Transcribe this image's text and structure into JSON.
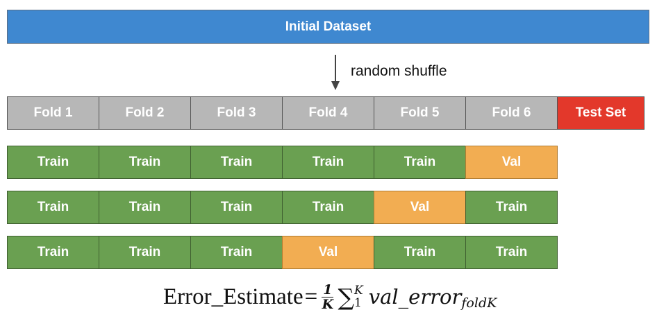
{
  "initial_dataset": {
    "label": "Initial Dataset",
    "color": "#3f88d0"
  },
  "shuffle": {
    "label": "random shuffle"
  },
  "folds": {
    "labels": [
      "Fold 1",
      "Fold 2",
      "Fold 3",
      "Fold 4",
      "Fold 5",
      "Fold 6"
    ],
    "test_label": "Test Set",
    "fold_color": "#b7b7b7",
    "test_color": "#e3382b"
  },
  "iterations": [
    [
      "Train",
      "Train",
      "Train",
      "Train",
      "Train",
      "Val"
    ],
    [
      "Train",
      "Train",
      "Train",
      "Train",
      "Val",
      "Train"
    ],
    [
      "Train",
      "Train",
      "Train",
      "Val",
      "Train",
      "Train"
    ]
  ],
  "colors": {
    "train": "#6aa051",
    "val": "#f2ad52"
  },
  "formula": {
    "lhs": "Error_Estimate",
    "equals": "=",
    "frac_num": "1",
    "frac_den": "K",
    "sum_symbol": "∑",
    "sum_upper": "K",
    "sum_lower": "1",
    "expr": "val_error",
    "subscript": "foldK"
  }
}
